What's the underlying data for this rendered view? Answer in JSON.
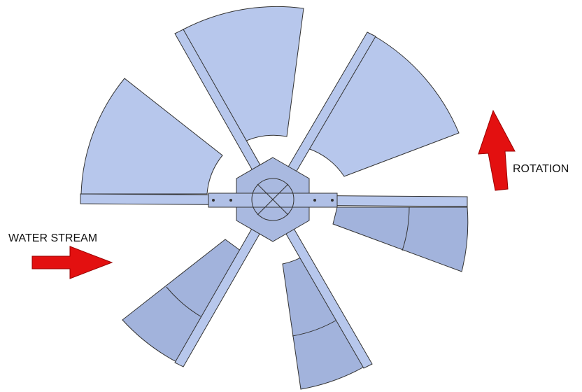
{
  "labels": {
    "water_stream": "WATER STREAM",
    "rotation": "ROTATION"
  }
}
